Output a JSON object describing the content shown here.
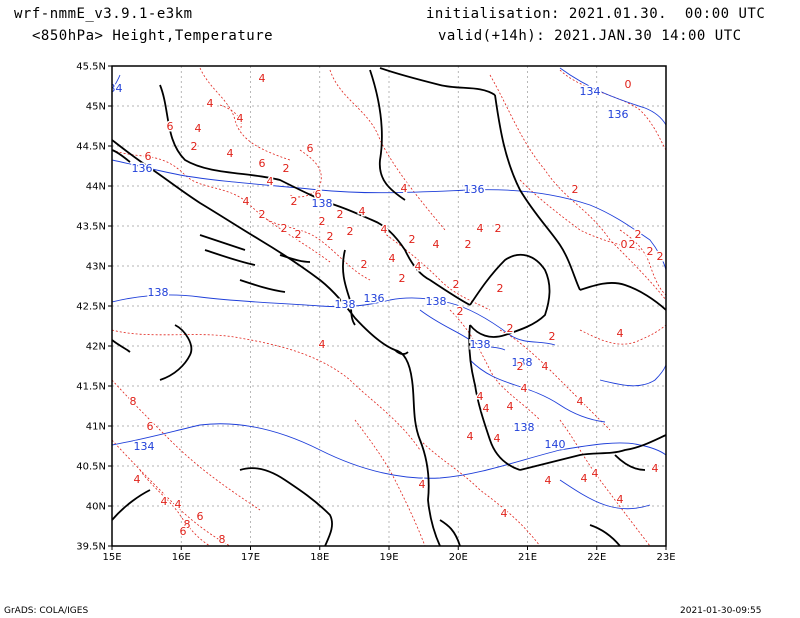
{
  "header": {
    "model": "wrf-nmmE_v3.9.1-e3km",
    "field": "<850hPa> Height,Temperature",
    "init": "initialisation: 2021.01.30.  00:00 UTC",
    "valid": "valid(+14h): 2021.JAN.30 14:00 UTC"
  },
  "footer": {
    "left": "GrADS: COLA/IGES",
    "right": "2021-01-30-09:55"
  },
  "axes": {
    "lon_labels": [
      "15E",
      "16E",
      "17E",
      "18E",
      "19E",
      "20E",
      "21E",
      "22E",
      "23E"
    ],
    "lat_labels": [
      "45.5N",
      "45N",
      "44.5N",
      "44N",
      "43.5N",
      "43N",
      "42.5N",
      "42N",
      "41.5N",
      "41N",
      "40.5N",
      "40N",
      "39.5N"
    ]
  },
  "colors": {
    "height": "#1f3fd9",
    "temperature": "#e0221a",
    "coast": "#000000",
    "grid": "#9a9a9a"
  },
  "height_labels": [
    "134",
    "134",
    "136",
    "136",
    "136",
    "138",
    "138",
    "138",
    "136",
    "138",
    "138",
    "138",
    "138",
    "140",
    "134"
  ],
  "temp_labels": [
    "4",
    "4",
    "4",
    "6",
    "4",
    "2",
    "4",
    "6",
    "6",
    "2",
    "6",
    "4",
    "6",
    "4",
    "2",
    "2",
    "2",
    "2",
    "2",
    "2",
    "2",
    "2",
    "4",
    "4",
    "4",
    "2",
    "4",
    "2",
    "4",
    "2",
    "4",
    "2",
    "2",
    "2",
    "2",
    "4",
    "2",
    "2",
    "4",
    "4",
    "2",
    "4",
    "4",
    "4",
    "6",
    "8",
    "4",
    "4",
    "4",
    "8",
    "6",
    "8",
    "6",
    "4",
    "4",
    "4",
    "4",
    "4",
    "4",
    "4",
    "4",
    "4",
    "4",
    "4",
    "4",
    "2",
    "0",
    "2",
    "2",
    "0",
    "2",
    "2",
    "2"
  ]
}
